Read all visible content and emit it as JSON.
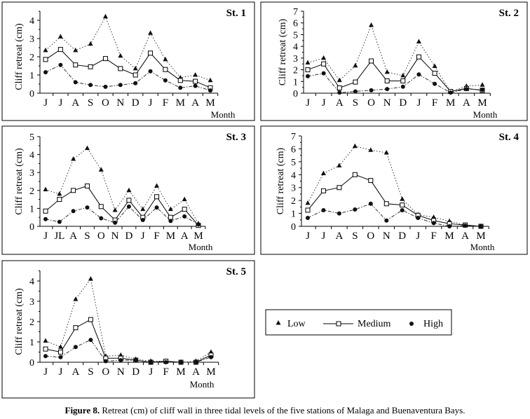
{
  "legend": {
    "low": "Low",
    "medium": "Medium",
    "high": "High"
  },
  "caption": {
    "label": "Figure 8.",
    "text": " Retreat (cm) of cliff wall in three tidal levels of the five stations of Malaga and Buenaventura Bays."
  },
  "chart_data": [
    {
      "type": "line",
      "title": "St. 1",
      "xlabel": "Month",
      "ylabel": "Cliff retreat (cm)",
      "ylim": [
        0,
        4.5
      ],
      "yticks": [
        0,
        1,
        2,
        3,
        4
      ],
      "categories": [
        "J",
        "J",
        "A",
        "S",
        "O",
        "N",
        "D",
        "J",
        "F",
        "M",
        "A",
        "M"
      ],
      "series": [
        {
          "name": "Low",
          "values": [
            2.35,
            3.1,
            2.35,
            2.7,
            4.2,
            2.05,
            1.35,
            3.3,
            1.85,
            0.85,
            1.0,
            0.7
          ]
        },
        {
          "name": "Medium",
          "values": [
            1.85,
            2.4,
            1.55,
            1.45,
            1.9,
            1.35,
            1.0,
            2.2,
            1.3,
            0.7,
            0.65,
            0.3
          ]
        },
        {
          "name": "High",
          "values": [
            1.15,
            1.55,
            0.6,
            0.45,
            0.35,
            0.45,
            0.55,
            1.2,
            0.7,
            0.3,
            0.4,
            0.15
          ]
        }
      ]
    },
    {
      "type": "line",
      "title": "St. 2",
      "xlabel": "Month",
      "ylabel": "Cliff retreat (cm)",
      "ylim": [
        0,
        7
      ],
      "yticks": [
        0,
        1,
        2,
        3,
        4,
        5,
        6,
        7
      ],
      "categories": [
        "J",
        "J",
        "A",
        "S",
        "O",
        "N",
        "D",
        "J",
        "F",
        "M",
        "A",
        "M"
      ],
      "series": [
        {
          "name": "Low",
          "values": [
            2.6,
            3.0,
            1.1,
            2.35,
            5.8,
            1.8,
            1.5,
            4.4,
            2.3,
            0.1,
            0.6,
            0.7
          ]
        },
        {
          "name": "Medium",
          "values": [
            2.0,
            2.5,
            0.45,
            0.95,
            2.75,
            1.05,
            1.05,
            3.1,
            1.7,
            0.15,
            0.4,
            0.25
          ]
        },
        {
          "name": "High",
          "values": [
            1.45,
            1.7,
            0.05,
            0.15,
            0.25,
            0.35,
            0.55,
            1.6,
            0.8,
            0.05,
            0.35,
            0.3
          ]
        }
      ]
    },
    {
      "type": "line",
      "title": "St. 3",
      "xlabel": "Month",
      "ylabel": "Cliff retreat (cm)",
      "ylim": [
        0,
        5
      ],
      "yticks": [
        0,
        1,
        2,
        3,
        4,
        5
      ],
      "categories": [
        "J",
        "JL",
        "A",
        "S",
        "O",
        "N",
        "D",
        "J",
        "F",
        "M",
        "A",
        "M"
      ],
      "series": [
        {
          "name": "Low",
          "values": [
            2.05,
            1.8,
            3.75,
            4.35,
            3.15,
            0.9,
            2.0,
            0.95,
            2.25,
            0.95,
            1.5,
            0.15
          ]
        },
        {
          "name": "Medium",
          "values": [
            0.85,
            1.5,
            2.0,
            2.25,
            1.1,
            0.35,
            1.45,
            0.5,
            1.65,
            0.5,
            0.95,
            0.05
          ]
        },
        {
          "name": "High",
          "values": [
            0.4,
            0.25,
            0.85,
            1.05,
            0.45,
            0.2,
            1.1,
            0.35,
            1.05,
            0.3,
            0.55,
            0.1
          ]
        }
      ]
    },
    {
      "type": "line",
      "title": "St. 4",
      "xlabel": "Month",
      "ylabel": "Cliff retreat (cm)",
      "ylim": [
        0,
        7
      ],
      "yticks": [
        0,
        1,
        2,
        3,
        4,
        5,
        6,
        7
      ],
      "categories": [
        "J",
        "J",
        "A",
        "S",
        "O",
        "N",
        "D",
        "J",
        "F",
        "M",
        "A",
        "M"
      ],
      "series": [
        {
          "name": "Low",
          "values": [
            1.8,
            4.1,
            4.7,
            6.2,
            5.9,
            5.7,
            2.1,
            0.9,
            0.7,
            0.4,
            0.1,
            0.0
          ]
        },
        {
          "name": "Medium",
          "values": [
            1.25,
            2.75,
            3.0,
            4.0,
            3.55,
            1.75,
            1.65,
            0.85,
            0.45,
            0.2,
            0.1,
            0.0
          ]
        },
        {
          "name": "High",
          "values": [
            0.65,
            1.25,
            1.0,
            1.3,
            1.75,
            0.45,
            1.25,
            0.65,
            0.25,
            0.0,
            0.05,
            0.0
          ]
        }
      ]
    },
    {
      "type": "line",
      "title": "St. 5",
      "xlabel": "Month",
      "ylabel": "Cliff retreat (cm)",
      "ylim": [
        0,
        4.5
      ],
      "yticks": [
        0,
        1,
        2,
        3,
        4
      ],
      "categories": [
        "J",
        "J",
        "A",
        "S",
        "O",
        "N",
        "D",
        "J",
        "F",
        "M",
        "A",
        "M"
      ],
      "series": [
        {
          "name": "Low",
          "values": [
            1.05,
            0.75,
            3.1,
            4.1,
            0.3,
            0.35,
            0.15,
            0.05,
            0.05,
            0.0,
            0.05,
            0.5
          ]
        },
        {
          "name": "Medium",
          "values": [
            0.65,
            0.5,
            1.7,
            2.1,
            0.2,
            0.2,
            0.1,
            0.0,
            0.05,
            0.0,
            0.0,
            0.35
          ]
        },
        {
          "name": "High",
          "values": [
            0.3,
            0.25,
            0.75,
            1.1,
            0.05,
            0.1,
            0.1,
            0.0,
            0.0,
            0.0,
            0.0,
            0.25
          ]
        }
      ]
    }
  ]
}
